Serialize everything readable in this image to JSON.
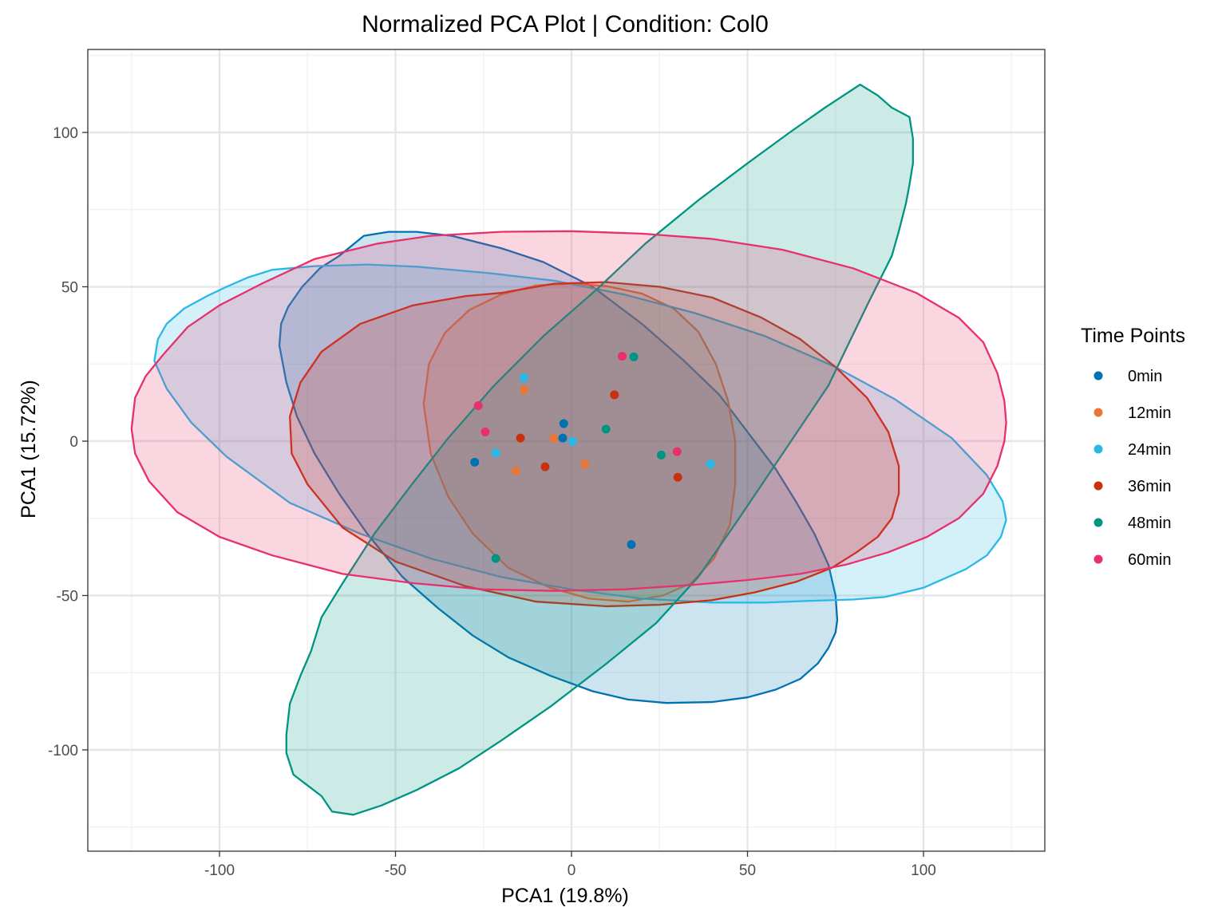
{
  "chart_data": {
    "type": "scatter",
    "title": "Normalized PCA Plot | Condition: Col0",
    "xlabel": "PCA1 (19.8%)",
    "ylabel": "PCA1 (15.72%)",
    "xlim": [
      -138,
      134
    ],
    "ylim": [
      -132,
      127
    ],
    "x_major_ticks": [
      -100,
      -50,
      0,
      50,
      100
    ],
    "x_minor_ticks": [
      -125,
      -75,
      -25,
      25,
      75,
      125
    ],
    "y_major_ticks": [
      -100,
      -50,
      0,
      50,
      100
    ],
    "y_minor_ticks": [
      -125,
      -75,
      -25,
      25,
      75,
      125
    ],
    "x_tick_labels": [
      "-100",
      "-50",
      "0",
      "50",
      "100"
    ],
    "y_tick_labels": [
      "-100",
      "-50",
      "0",
      "50",
      "100"
    ],
    "grid": true,
    "legend": {
      "title": "Time Points",
      "position": "right"
    },
    "series": [
      {
        "name": "0min",
        "color": "#0072B2",
        "points": [
          [
            -27.5,
            -6.8
          ],
          [
            -2.2,
            5.7
          ],
          [
            -2.5,
            1.0
          ],
          [
            17,
            -33.5
          ]
        ],
        "ellipse": [
          [
            -59,
            66.5
          ],
          [
            -52,
            67.8
          ],
          [
            -44,
            67.8
          ],
          [
            -34,
            66.5
          ],
          [
            -20,
            62.5
          ],
          [
            -8,
            58
          ],
          [
            6,
            50
          ],
          [
            20,
            38
          ],
          [
            32,
            26
          ],
          [
            42,
            15
          ],
          [
            50,
            3
          ],
          [
            58,
            -9
          ],
          [
            64,
            -20
          ],
          [
            69,
            -30
          ],
          [
            73,
            -40
          ],
          [
            75,
            -50
          ],
          [
            75.5,
            -58
          ],
          [
            75,
            -62
          ],
          [
            73,
            -67
          ],
          [
            70,
            -72
          ],
          [
            65,
            -77
          ],
          [
            58,
            -80.5
          ],
          [
            50,
            -83
          ],
          [
            40,
            -84.5
          ],
          [
            27,
            -84.8
          ],
          [
            16,
            -83.7
          ],
          [
            6,
            -81
          ],
          [
            -6,
            -76
          ],
          [
            -18,
            -70
          ],
          [
            -28,
            -63
          ],
          [
            -38,
            -54
          ],
          [
            -48,
            -44
          ],
          [
            -58,
            -30
          ],
          [
            -66,
            -17
          ],
          [
            -73,
            -4
          ],
          [
            -78,
            8
          ],
          [
            -81,
            19
          ],
          [
            -83,
            31
          ],
          [
            -82.5,
            38
          ],
          [
            -80.5,
            43.5
          ],
          [
            -76.5,
            50
          ],
          [
            -71.5,
            56
          ],
          [
            -66,
            60
          ],
          [
            -59,
            66.5
          ]
        ]
      },
      {
        "name": "12min",
        "color": "#E87635",
        "points": [
          [
            -13.5,
            16.5
          ],
          [
            -5,
            0.9
          ],
          [
            -15.8,
            -9.7
          ],
          [
            3.8,
            -7.4
          ]
        ],
        "ellipse": [
          [
            0,
            51
          ],
          [
            10,
            50.2
          ],
          [
            20,
            47.8
          ],
          [
            29,
            43
          ],
          [
            36,
            35.5
          ],
          [
            41,
            25
          ],
          [
            44.5,
            13
          ],
          [
            46.5,
            0
          ],
          [
            46.5,
            -14
          ],
          [
            45,
            -27
          ],
          [
            40.5,
            -38
          ],
          [
            34,
            -46
          ],
          [
            26,
            -50
          ],
          [
            16,
            -52
          ],
          [
            5,
            -51
          ],
          [
            -6,
            -47.5
          ],
          [
            -18,
            -41
          ],
          [
            -28,
            -30
          ],
          [
            -35,
            -18
          ],
          [
            -40,
            -4
          ],
          [
            -42,
            12
          ],
          [
            -40.5,
            25
          ],
          [
            -36,
            35
          ],
          [
            -29,
            42.5
          ],
          [
            -20,
            47.5
          ],
          [
            -10,
            50.5
          ],
          [
            0,
            51
          ]
        ]
      },
      {
        "name": "24min",
        "color": "#29B8E8",
        "points": [
          [
            -13.5,
            20.5
          ],
          [
            -21.5,
            -3.8
          ],
          [
            0.3,
            -0.1
          ],
          [
            39.5,
            -7.4
          ]
        ],
        "ellipse": [
          [
            -98,
            50
          ],
          [
            -92,
            53
          ],
          [
            -85,
            55.5
          ],
          [
            -73,
            56.7
          ],
          [
            -58,
            57.2
          ],
          [
            -44,
            56.5
          ],
          [
            -24,
            54.5
          ],
          [
            -5,
            52
          ],
          [
            15,
            47.5
          ],
          [
            35,
            41.5
          ],
          [
            55,
            34
          ],
          [
            75,
            24
          ],
          [
            92,
            13.5
          ],
          [
            108,
            1
          ],
          [
            118,
            -11
          ],
          [
            122.5,
            -19.5
          ],
          [
            123.5,
            -25.5
          ],
          [
            122,
            -31
          ],
          [
            118,
            -37
          ],
          [
            112,
            -41.5
          ],
          [
            105,
            -45
          ],
          [
            100,
            -47.5
          ],
          [
            89,
            -50.5
          ],
          [
            80,
            -51.3
          ],
          [
            68,
            -51.7
          ],
          [
            55,
            -52.3
          ],
          [
            40,
            -52.3
          ],
          [
            20,
            -51
          ],
          [
            0,
            -48
          ],
          [
            -20,
            -44
          ],
          [
            -40,
            -38
          ],
          [
            -60,
            -30
          ],
          [
            -80,
            -20
          ],
          [
            -98,
            -5
          ],
          [
            -108,
            6
          ],
          [
            -115,
            17
          ],
          [
            -118.5,
            26
          ],
          [
            -117.5,
            33
          ],
          [
            -115,
            38
          ],
          [
            -110,
            43
          ],
          [
            -103,
            47.3
          ],
          [
            -98,
            50
          ]
        ]
      },
      {
        "name": "36min",
        "color": "#C9300F",
        "points": [
          [
            -14.5,
            1.0
          ],
          [
            -7.5,
            -8.3
          ],
          [
            12.2,
            15.0
          ],
          [
            30.2,
            -11.7
          ]
        ],
        "ellipse": [
          [
            -20,
            48
          ],
          [
            -5,
            51
          ],
          [
            10,
            51.5
          ],
          [
            25,
            50
          ],
          [
            40,
            46.5
          ],
          [
            54,
            40
          ],
          [
            65,
            33
          ],
          [
            75,
            24
          ],
          [
            84,
            14
          ],
          [
            90,
            3
          ],
          [
            93,
            -8
          ],
          [
            93,
            -17
          ],
          [
            91,
            -25
          ],
          [
            87,
            -31
          ],
          [
            81,
            -36
          ],
          [
            74,
            -41
          ],
          [
            64,
            -45.5
          ],
          [
            52,
            -49
          ],
          [
            40,
            -51.5
          ],
          [
            25,
            -53
          ],
          [
            10,
            -53.5
          ],
          [
            -10,
            -52
          ],
          [
            -30,
            -47
          ],
          [
            -50,
            -39
          ],
          [
            -65,
            -28
          ],
          [
            -75,
            -14
          ],
          [
            -79.5,
            -4
          ],
          [
            -80,
            8
          ],
          [
            -77,
            19
          ],
          [
            -71,
            29
          ],
          [
            -60,
            38
          ],
          [
            -45,
            44
          ],
          [
            -30,
            47
          ],
          [
            -20,
            48
          ]
        ]
      },
      {
        "name": "48min",
        "color": "#009483",
        "points": [
          [
            17.7,
            27.3
          ],
          [
            9.8,
            3.9
          ],
          [
            25.5,
            -4.5
          ],
          [
            -21.5,
            -38
          ]
        ],
        "ellipse": [
          [
            82,
            115.5
          ],
          [
            87,
            112
          ],
          [
            91,
            108
          ],
          [
            96,
            105
          ],
          [
            97,
            98
          ],
          [
            97,
            90
          ],
          [
            96,
            83
          ],
          [
            95,
            77
          ],
          [
            93,
            68
          ],
          [
            91,
            60
          ],
          [
            84,
            44
          ],
          [
            73,
            18
          ],
          [
            60,
            -4
          ],
          [
            47,
            -26
          ],
          [
            36,
            -44
          ],
          [
            24,
            -59
          ],
          [
            10,
            -72
          ],
          [
            -6,
            -86
          ],
          [
            -20,
            -97
          ],
          [
            -32,
            -106
          ],
          [
            -44,
            -113
          ],
          [
            -54,
            -118
          ],
          [
            -62,
            -121
          ],
          [
            -68,
            -120
          ],
          [
            -71,
            -115
          ],
          [
            -79,
            -108
          ],
          [
            -81,
            -101
          ],
          [
            -81,
            -95
          ],
          [
            -80,
            -85
          ],
          [
            -77,
            -76
          ],
          [
            -74,
            -68
          ],
          [
            -71,
            -57
          ],
          [
            -65,
            -46
          ],
          [
            -56,
            -30
          ],
          [
            -46,
            -15
          ],
          [
            -35,
            1
          ],
          [
            -22,
            18
          ],
          [
            -8,
            34
          ],
          [
            7,
            49
          ],
          [
            21,
            64
          ],
          [
            36,
            78
          ],
          [
            50,
            90
          ],
          [
            62,
            100
          ],
          [
            72,
            108
          ],
          [
            82,
            115.5
          ]
        ]
      },
      {
        "name": "60min",
        "color": "#E8306B",
        "points": [
          [
            -26.5,
            11.5
          ],
          [
            -24.5,
            3.0
          ],
          [
            14.4,
            27.5
          ],
          [
            30.0,
            -3.4
          ]
        ],
        "ellipse": [
          [
            -73,
            59
          ],
          [
            -55,
            64
          ],
          [
            -40,
            66.5
          ],
          [
            -20,
            67.8
          ],
          [
            0,
            68
          ],
          [
            20,
            67.2
          ],
          [
            40,
            65.5
          ],
          [
            60,
            62
          ],
          [
            80,
            56
          ],
          [
            98,
            48
          ],
          [
            110,
            40
          ],
          [
            117,
            32
          ],
          [
            121,
            22
          ],
          [
            123,
            13
          ],
          [
            123.5,
            6
          ],
          [
            123,
            0
          ],
          [
            121,
            -8
          ],
          [
            117,
            -17
          ],
          [
            110,
            -25
          ],
          [
            101,
            -31
          ],
          [
            90,
            -36
          ],
          [
            78,
            -40
          ],
          [
            65,
            -43
          ],
          [
            50,
            -45
          ],
          [
            35,
            -46.5
          ],
          [
            15,
            -48
          ],
          [
            -5,
            -48.5
          ],
          [
            -25,
            -48
          ],
          [
            -45,
            -46
          ],
          [
            -65,
            -43
          ],
          [
            -85,
            -37
          ],
          [
            -100,
            -31
          ],
          [
            -112,
            -23
          ],
          [
            -120,
            -13
          ],
          [
            -124,
            -4
          ],
          [
            -125,
            4
          ],
          [
            -124,
            14
          ],
          [
            -121,
            21
          ],
          [
            -116,
            28
          ],
          [
            -109,
            37
          ],
          [
            -100,
            44
          ],
          [
            -88,
            51
          ],
          [
            -73,
            59
          ]
        ]
      }
    ]
  }
}
